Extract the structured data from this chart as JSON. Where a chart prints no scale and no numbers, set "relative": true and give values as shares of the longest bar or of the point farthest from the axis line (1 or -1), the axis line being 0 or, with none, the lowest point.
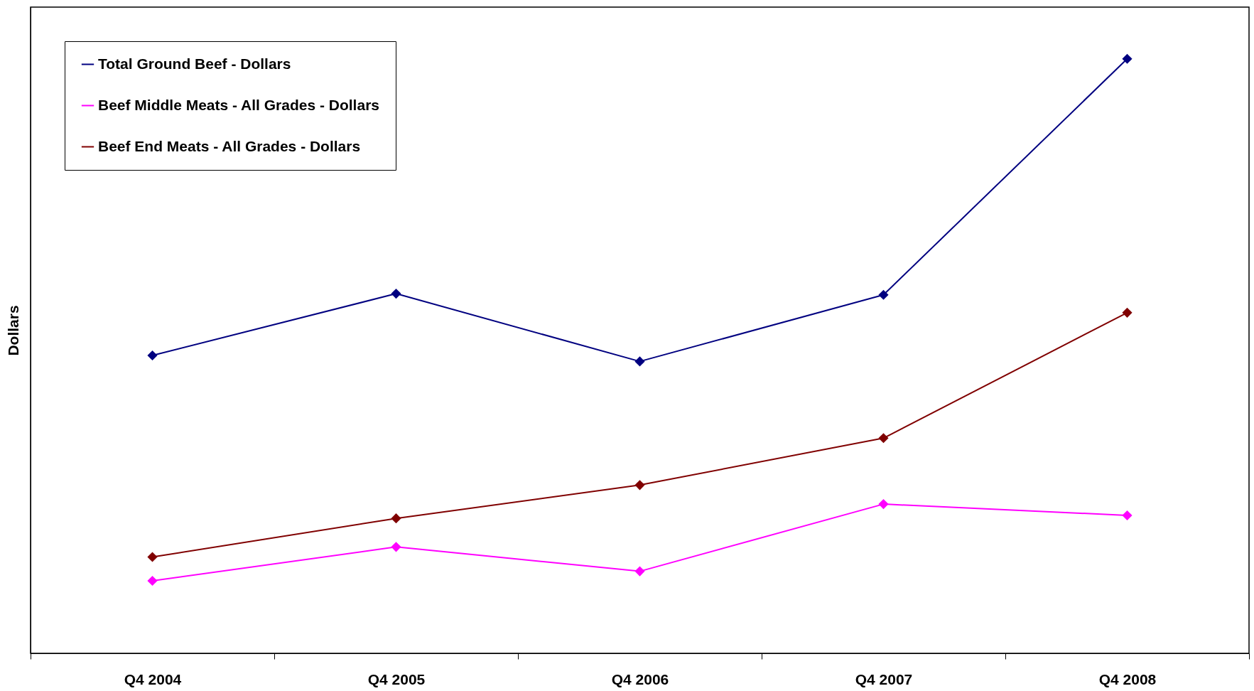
{
  "chart_data": {
    "type": "line",
    "ylabel": "Dollars",
    "relative": true,
    "categories": [
      "Q4 2004",
      "Q4 2005",
      "Q4 2006",
      "Q4 2007",
      "Q4 2008"
    ],
    "series": [
      {
        "name": "Total Ground Beef - Dollars",
        "color": "#000080",
        "values": [
          0.501,
          0.605,
          0.491,
          0.603,
          1
        ]
      },
      {
        "name": "Beef Middle Meats - All Grades - Dollars",
        "color": "#ff00ff",
        "values": [
          0.122,
          0.179,
          0.138,
          0.251,
          0.232
        ]
      },
      {
        "name": "Beef End Meats - All Grades - Dollars",
        "color": "#800000",
        "values": [
          0.162,
          0.227,
          0.283,
          0.362,
          0.573
        ]
      }
    ],
    "marker": "diamond",
    "line_style": "solid",
    "legend": "top left",
    "grid": false
  }
}
